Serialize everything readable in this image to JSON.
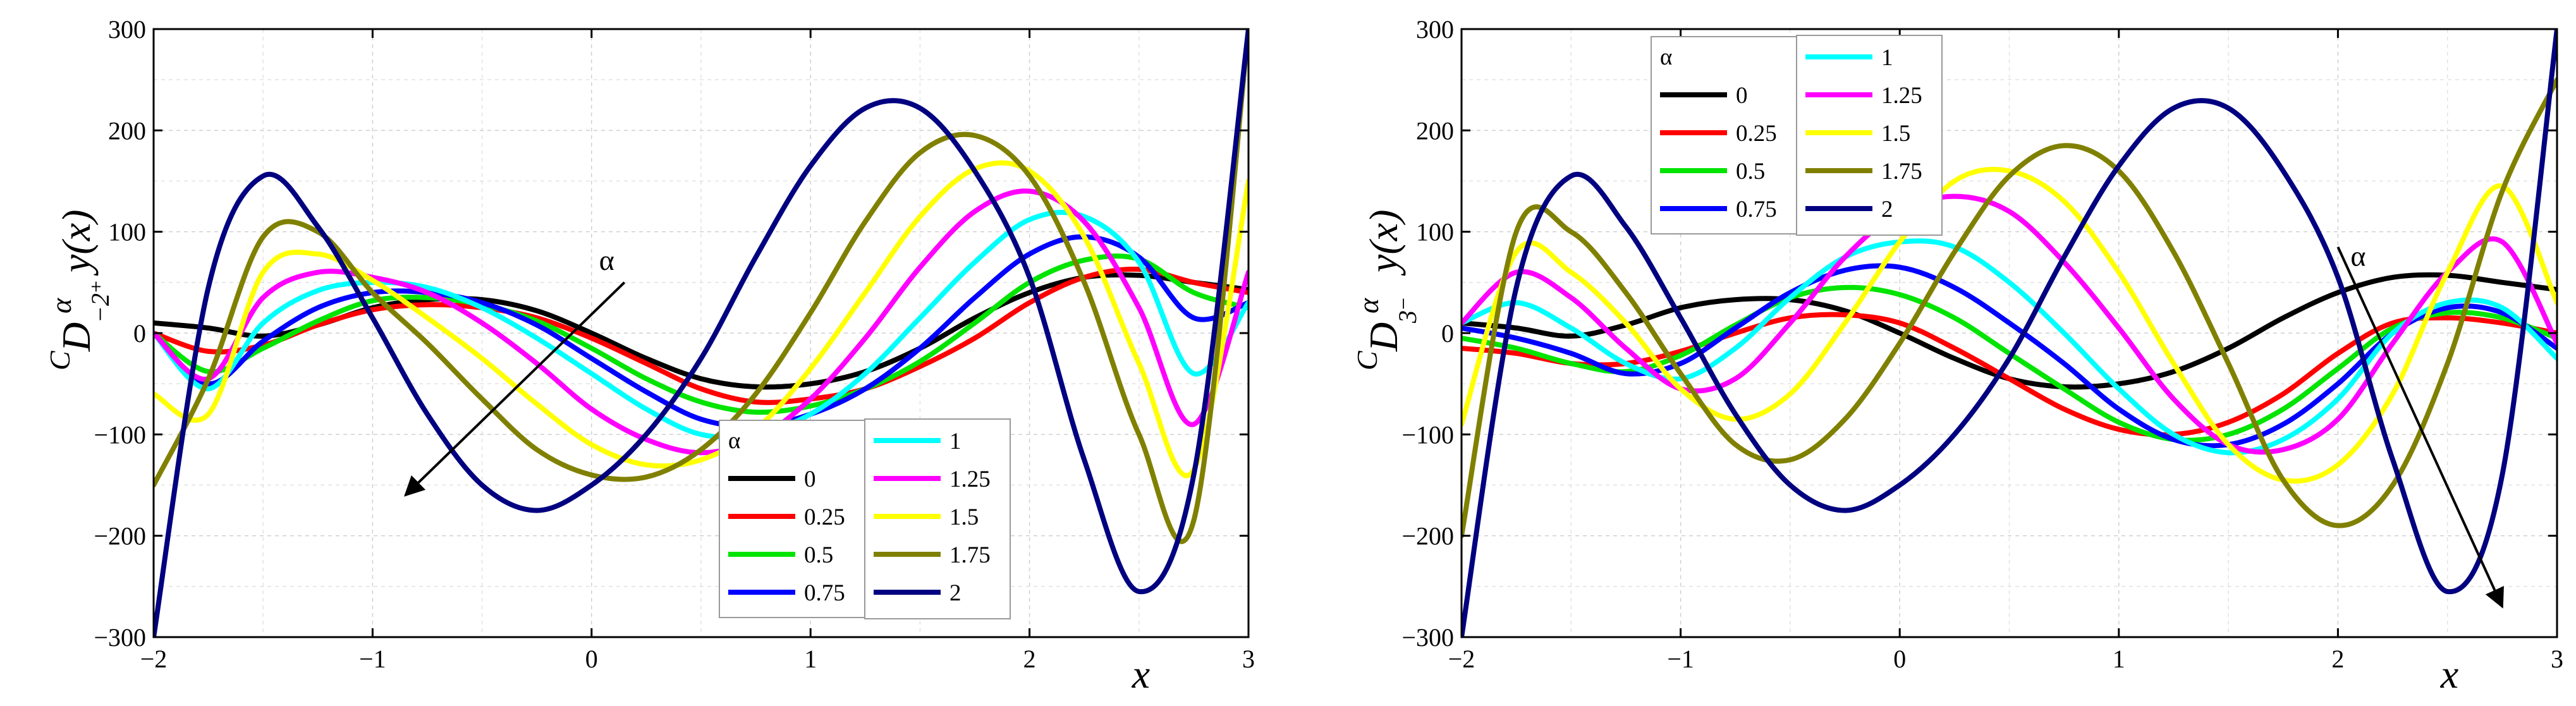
{
  "chart_data": [
    {
      "type": "line",
      "panel": "left",
      "ylabel": {
        "base": "D",
        "pre_sup": "C",
        "sup": "α",
        "sub": "−2⁺",
        "func": "y(x)"
      },
      "xlabel": "x",
      "xlim": [
        -2,
        3
      ],
      "ylim": [
        -300,
        300
      ],
      "xticks": [
        -2,
        -1,
        0,
        1,
        2,
        3
      ],
      "xtick_labels": [
        "−2",
        "−1",
        "0",
        "1",
        "2",
        "3"
      ],
      "yticks": [
        -300,
        -200,
        -100,
        0,
        100,
        200,
        300
      ],
      "ytick_labels": [
        "−300",
        "−200",
        "−100",
        "0",
        "100",
        "200",
        "300"
      ],
      "grid": true,
      "legend_position": "bottom-center",
      "legend_title": "α",
      "annotation": {
        "text": "α",
        "arrow_from": [
          0.15,
          50
        ],
        "arrow_to": [
          -0.85,
          -160
        ]
      },
      "x": [
        -2.0,
        -1.75,
        -1.5,
        -1.25,
        -1.0,
        -0.75,
        -0.5,
        -0.25,
        0.0,
        0.25,
        0.5,
        0.75,
        1.0,
        1.25,
        1.5,
        1.75,
        2.0,
        2.25,
        2.5,
        2.75,
        3.0
      ],
      "series": [
        {
          "name": "0",
          "color": "#000000",
          "values": [
            10,
            5,
            -3,
            8,
            25,
            33,
            33,
            22,
            0,
            -25,
            -45,
            -53,
            -50,
            -38,
            -15,
            15,
            40,
            55,
            57,
            50,
            43
          ]
        },
        {
          "name": "0.25",
          "color": "#ff0000",
          "values": [
            0,
            -18,
            -12,
            8,
            23,
            28,
            25,
            15,
            -5,
            -30,
            -55,
            -68,
            -65,
            -55,
            -33,
            -5,
            30,
            55,
            63,
            50,
            40
          ]
        },
        {
          "name": "0.5",
          "color": "#00e400",
          "values": [
            0,
            -38,
            -15,
            12,
            32,
            35,
            28,
            12,
            -15,
            -45,
            -68,
            -78,
            -72,
            -55,
            -28,
            10,
            50,
            72,
            73,
            40,
            25
          ]
        },
        {
          "name": "0.75",
          "color": "#0000ff",
          "values": [
            0,
            -50,
            -8,
            25,
            40,
            40,
            30,
            8,
            -25,
            -58,
            -85,
            -92,
            -80,
            -55,
            -15,
            35,
            78,
            95,
            75,
            15,
            30
          ]
        },
        {
          "name": "1",
          "color": "#00ffff",
          "values": [
            0,
            -55,
            10,
            42,
            50,
            45,
            25,
            -5,
            -40,
            -75,
            -100,
            -100,
            -80,
            -40,
            15,
            70,
            112,
            115,
            70,
            -40,
            30
          ]
        },
        {
          "name": "1.25",
          "color": "#ff00ff",
          "values": [
            0,
            -45,
            35,
            60,
            55,
            40,
            10,
            -30,
            -75,
            -105,
            -118,
            -105,
            -65,
            -5,
            65,
            120,
            140,
            110,
            25,
            -90,
            60
          ]
        },
        {
          "name": "1.5",
          "color": "#ffff00",
          "values": [
            -60,
            -80,
            60,
            78,
            52,
            15,
            -25,
            -70,
            -110,
            -130,
            -125,
            -95,
            -35,
            40,
            115,
            162,
            160,
            95,
            -30,
            -135,
            150
          ]
        },
        {
          "name": "1.75",
          "color": "#808000",
          "values": [
            -150,
            -45,
            95,
            100,
            40,
            -10,
            -65,
            -115,
            -140,
            -142,
            -115,
            -60,
            20,
            110,
            178,
            195,
            155,
            50,
            -100,
            -185,
            300
          ]
        },
        {
          "name": "2",
          "color": "#000080",
          "values": [
            -300,
            45,
            155,
            105,
            15,
            -80,
            -150,
            -175,
            -150,
            -100,
            -25,
            75,
            165,
            222,
            222,
            160,
            55,
            -125,
            -255,
            -140,
            300
          ]
        }
      ]
    },
    {
      "type": "line",
      "panel": "right",
      "ylabel": {
        "base": "D",
        "pre_sup": "C",
        "sup": "α",
        "sub": "3⁻",
        "func": "y(x)"
      },
      "xlabel": "x",
      "xlim": [
        -2,
        3
      ],
      "ylim": [
        -300,
        300
      ],
      "xticks": [
        -2,
        -1,
        0,
        1,
        2,
        3
      ],
      "xtick_labels": [
        "−2",
        "−1",
        "0",
        "1",
        "2",
        "3"
      ],
      "yticks": [
        -300,
        -200,
        -100,
        0,
        100,
        200,
        300
      ],
      "ytick_labels": [
        "−300",
        "−200",
        "−100",
        "0",
        "100",
        "200",
        "300"
      ],
      "grid": true,
      "legend_position": "top-left",
      "legend_title": "α",
      "annotation": {
        "text": "α",
        "arrow_from": [
          2.0,
          85
        ],
        "arrow_to": [
          2.75,
          -270
        ]
      },
      "x": [
        -2.0,
        -1.75,
        -1.5,
        -1.25,
        -1.0,
        -0.75,
        -0.5,
        -0.25,
        0.0,
        0.25,
        0.5,
        0.75,
        1.0,
        1.25,
        1.5,
        1.75,
        2.0,
        2.25,
        2.5,
        2.75,
        3.0
      ],
      "series": [
        {
          "name": "0",
          "color": "#000000",
          "values": [
            10,
            5,
            -3,
            8,
            25,
            33,
            33,
            22,
            0,
            -25,
            -45,
            -53,
            -50,
            -38,
            -15,
            15,
            40,
            55,
            57,
            50,
            43
          ]
        },
        {
          "name": "0.25",
          "color": "#ff0000",
          "values": [
            -15,
            -20,
            -30,
            -30,
            -18,
            0,
            15,
            18,
            10,
            -15,
            -45,
            -75,
            -95,
            -100,
            -88,
            -60,
            -20,
            10,
            15,
            10,
            0
          ]
        },
        {
          "name": "0.5",
          "color": "#00e400",
          "values": [
            -5,
            -15,
            -30,
            -38,
            -22,
            8,
            35,
            45,
            38,
            15,
            -20,
            -55,
            -88,
            -105,
            -100,
            -75,
            -35,
            5,
            20,
            15,
            -5
          ]
        },
        {
          "name": "0.75",
          "color": "#0000ff",
          "values": [
            5,
            -5,
            -20,
            -40,
            -30,
            5,
            40,
            62,
            65,
            45,
            10,
            -30,
            -75,
            -105,
            -110,
            -90,
            -50,
            0,
            25,
            20,
            -15
          ]
        },
        {
          "name": "1",
          "color": "#00ffff",
          "values": [
            10,
            30,
            5,
            -30,
            -45,
            -15,
            35,
            75,
            90,
            85,
            50,
            0,
            -55,
            -100,
            -118,
            -105,
            -65,
            0,
            30,
            25,
            -25
          ]
        },
        {
          "name": "1.25",
          "color": "#ff00ff",
          "values": [
            10,
            60,
            35,
            -15,
            -55,
            -45,
            10,
            75,
            120,
            135,
            120,
            70,
            5,
            -65,
            -110,
            -115,
            -85,
            -10,
            60,
            90,
            -10
          ]
        },
        {
          "name": "1.5",
          "color": "#ffff00",
          "values": [
            -90,
            80,
            60,
            10,
            -55,
            -85,
            -60,
            10,
            90,
            150,
            160,
            130,
            60,
            -30,
            -110,
            -145,
            -130,
            -60,
            60,
            145,
            30
          ]
        },
        {
          "name": "1.75",
          "color": "#808000",
          "values": [
            -200,
            100,
            100,
            40,
            -40,
            -110,
            -125,
            -85,
            -10,
            80,
            155,
            185,
            160,
            80,
            -30,
            -145,
            -190,
            -150,
            -30,
            140,
            250
          ]
        },
        {
          "name": "2",
          "color": "#000080",
          "values": [
            -300,
            45,
            155,
            105,
            15,
            -80,
            -150,
            -175,
            -150,
            -100,
            -25,
            75,
            165,
            222,
            222,
            160,
            55,
            -125,
            -255,
            -140,
            300
          ]
        }
      ]
    }
  ]
}
